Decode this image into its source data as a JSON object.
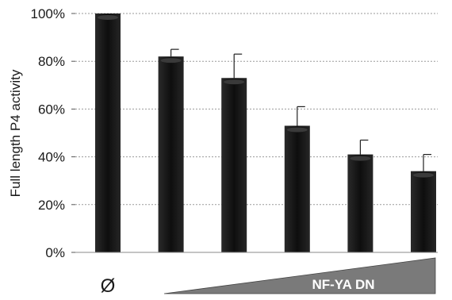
{
  "chart_data": {
    "type": "bar",
    "categories": [
      "Ø",
      "",
      "",
      "",
      "",
      ""
    ],
    "values": [
      100,
      82,
      73,
      53,
      41,
      34
    ],
    "errors": [
      0,
      3,
      10,
      8,
      6,
      7
    ],
    "ylabel": "Full length P4 activity",
    "ylim": [
      0,
      100
    ],
    "yticks": [
      "0%",
      "20%",
      "40%",
      "60%",
      "80%",
      "100%"
    ],
    "ytick_values": [
      0,
      20,
      40,
      60,
      80,
      100
    ],
    "grid": true,
    "wedge_label": "NF-YA DN",
    "colors": {
      "bar": "#141414",
      "bar_highlight": "#3a3a3a",
      "wedge": "#7a7a7a",
      "grid": "#9a9a9a",
      "error": "#222222"
    }
  }
}
